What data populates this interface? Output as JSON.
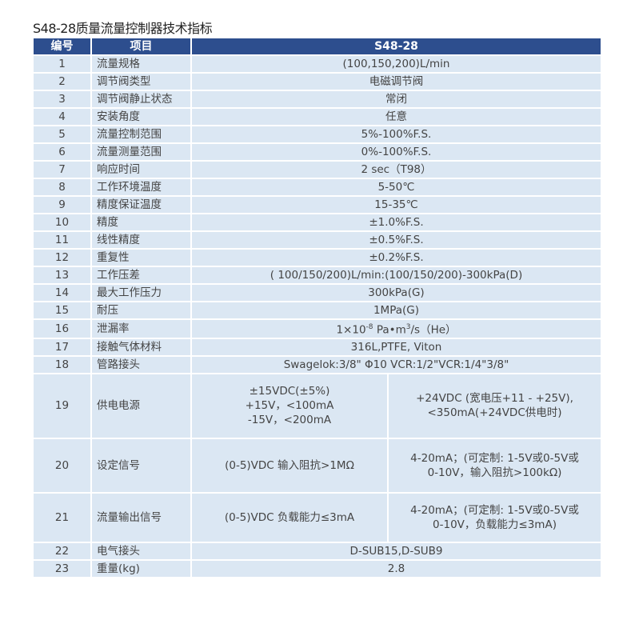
{
  "title": "S48-28质量流量控制器技术指标",
  "headers": [
    "编号",
    "项目",
    "S48-28"
  ],
  "rows": [
    {
      "no": "1",
      "item": "流量规格",
      "value": "(100,150,200)L/min"
    },
    {
      "no": "2",
      "item": "调节阀类型",
      "value": "电磁调节阀"
    },
    {
      "no": "3",
      "item": "调节阀静止状态",
      "value": "常闭"
    },
    {
      "no": "4",
      "item": "安装角度",
      "value": "任意"
    },
    {
      "no": "5",
      "item": "流量控制范围",
      "value": "5%-100%F.S."
    },
    {
      "no": "6",
      "item": "流量测量范围",
      "value": "0%-100%F.S."
    },
    {
      "no": "7",
      "item": "响应时间",
      "value": "2 sec（T98）"
    },
    {
      "no": "8",
      "item": "工作环境温度",
      "value": "5-50℃"
    },
    {
      "no": "9",
      "item": "精度保证温度",
      "value": "15-35℃"
    },
    {
      "no": "10",
      "item": "精度",
      "value": "±1.0%F.S."
    },
    {
      "no": "11",
      "item": "线性精度",
      "value": "±0.5%F.S."
    },
    {
      "no": "12",
      "item": "重复性",
      "value": "±0.2%F.S."
    },
    {
      "no": "13",
      "item": "工作压差",
      "value": "( 100/150/200)L/min:(100/150/200)-300kPa(D)"
    },
    {
      "no": "14",
      "item": "最大工作压力",
      "value": "300kPa(G)"
    },
    {
      "no": "15",
      "item": "耐压",
      "value": "1MPa(G)"
    },
    {
      "no": "16",
      "item": "泄漏率",
      "value_pre": "1×10",
      "value_sup": "-8",
      "value_mid": " Pa•m",
      "value_sup2": "3",
      "value_post": "/s（He）"
    },
    {
      "no": "17",
      "item": "接触气体材料",
      "value": "316L,PTFE, Viton"
    },
    {
      "no": "18",
      "item": "管路接头",
      "value": "Swagelok:3/8\" Φ10  VCR:1/2\"VCR:1/4\"3/8\""
    },
    {
      "no": "19",
      "item": "供电电源",
      "left": [
        "±15VDC(±5%)",
        "+15V，<100mA",
        "-15V，<200mA"
      ],
      "right": [
        "+24VDC (宽电压+11 - +25V),",
        "<350mA(+24VDC供电时)"
      ]
    },
    {
      "no": "20",
      "item": "设定信号",
      "left": [
        "(0-5)VDC  输入阻抗>1MΩ"
      ],
      "right": [
        "4-20mA；(可定制: 1-5V或0-5V或",
        "0-10V，输入阻抗>100kΩ)"
      ]
    },
    {
      "no": "21",
      "item": "流量输出信号",
      "left": [
        "(0-5)VDC 负载能力≤3mA"
      ],
      "right": [
        "4-20mA；(可定制: 1-5V或0-5V或",
        "0-10V，负载能力≤3mA)"
      ]
    },
    {
      "no": "22",
      "item": "电气接头",
      "value": "D-SUB15,D-SUB9"
    },
    {
      "no": "23",
      "item": "重量(kg)",
      "value": "2.8"
    }
  ]
}
